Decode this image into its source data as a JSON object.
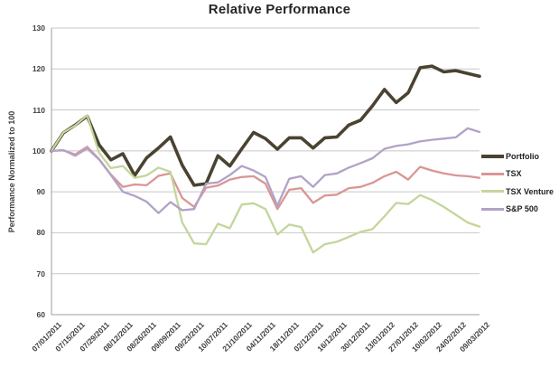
{
  "window": {
    "background": "#ffffff"
  },
  "colors": {
    "grid": "#c8c8c8",
    "axis": "#9e9e9e",
    "tick_text": "#3f3f3f",
    "title_text": "#262626",
    "background": "#ffffff"
  },
  "chart_data": {
    "type": "line",
    "title": "Relative Performance",
    "xlabel": "",
    "ylabel": "Performance Normalized to 100",
    "ylim": [
      60,
      130
    ],
    "yticks": [
      60,
      70,
      80,
      90,
      100,
      110,
      120,
      130
    ],
    "grid": "horizontal",
    "legend_position": "right",
    "points_per_label": 2,
    "x_labels": [
      "07/01/2011",
      "07/15/2011",
      "07/29/2011",
      "08/12/2011",
      "08/26/2011",
      "09/09/2011",
      "09/23/2011",
      "10/07/2011",
      "21/10/2011",
      "04/11/2011",
      "18/11/2011",
      "02/12/2011",
      "16/12/2011",
      "30/12/2011",
      "13/01/2012",
      "27/01/2012",
      "10/02/2012",
      "24/02/2012",
      "09/03/2012"
    ],
    "series": [
      {
        "name": "Portfolio",
        "color": "#4a4331",
        "line_width": 3.6,
        "values": [
          100,
          104.4,
          106.3,
          108.5,
          101.5,
          97.8,
          99.3,
          94.0,
          98.3,
          100.7,
          103.4,
          96.5,
          91.6,
          92.0,
          98.8,
          96.3,
          100.5,
          104.5,
          103.0,
          100.4,
          103.2,
          103.2,
          100.7,
          103.2,
          103.4,
          106.3,
          107.5,
          111.0,
          115.0,
          111.8,
          114.2,
          120.3,
          120.7,
          119.3,
          119.6,
          118.9,
          118.2
        ]
      },
      {
        "name": "TSX",
        "color": "#d99694",
        "line_width": 2.3,
        "values": [
          100,
          100.1,
          99.1,
          101.0,
          98.0,
          94.2,
          91.2,
          91.8,
          91.6,
          93.9,
          94.5,
          88.5,
          86.3,
          91.0,
          91.5,
          93.0,
          93.6,
          93.8,
          92.0,
          85.8,
          90.5,
          90.9,
          87.3,
          89.1,
          89.3,
          90.9,
          91.2,
          92.2,
          93.8,
          94.9,
          93.0,
          96.1,
          95.2,
          94.5,
          94.0,
          93.8,
          93.4
        ]
      },
      {
        "name": "TSX Venture",
        "color": "#c3d69b",
        "line_width": 2.3,
        "values": [
          100,
          104.5,
          106.2,
          108.7,
          99.5,
          95.8,
          96.3,
          93.4,
          94.0,
          95.9,
          94.9,
          82.5,
          77.4,
          77.2,
          82.2,
          81.1,
          86.9,
          87.2,
          85.8,
          79.6,
          82.0,
          81.4,
          75.2,
          77.2,
          77.8,
          79.0,
          80.2,
          80.9,
          84.0,
          87.3,
          87.0,
          89.2,
          88.0,
          86.3,
          84.4,
          82.5,
          81.5
        ]
      },
      {
        "name": "S&P 500",
        "color": "#b2a2c7",
        "line_width": 2.3,
        "values": [
          100,
          100.2,
          98.8,
          100.6,
          97.9,
          94.1,
          90.0,
          89.0,
          87.6,
          84.8,
          87.5,
          85.5,
          85.8,
          92.0,
          92.3,
          94.1,
          96.3,
          95.2,
          93.6,
          86.6,
          93.2,
          93.8,
          91.2,
          94.1,
          94.5,
          95.9,
          97.0,
          98.2,
          100.5,
          101.2,
          101.6,
          102.3,
          102.7,
          103.0,
          103.3,
          105.5,
          104.6
        ]
      }
    ]
  }
}
